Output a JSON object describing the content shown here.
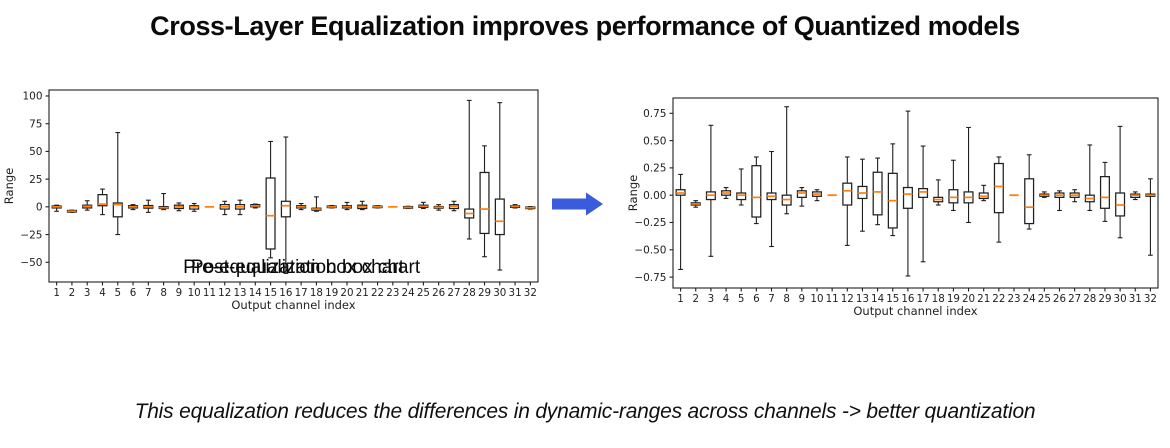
{
  "header": {
    "title": "Cross-Layer Equalization improves performance of Quantized models"
  },
  "footnote": {
    "text": "This equalization reduces the differences in dynamic-ranges across channels -> better quantization"
  },
  "arrow": {
    "name": "right-arrow",
    "color": "#3A5BDB"
  },
  "colors": {
    "box_line": "#1f1f1f",
    "median": "#ff7f0e",
    "background": "#ffffff"
  },
  "box_value_order": [
    "whisker_low",
    "q1",
    "median",
    "q3",
    "whisker_high"
  ],
  "chart_data": [
    {
      "type": "boxplot",
      "title": "Pre-equalization box chart",
      "xlabel": "Output channel index",
      "ylabel": "Range",
      "grid": false,
      "ylim": [
        -67.8,
        105.4
      ],
      "ytick_values": [
        100,
        75,
        50,
        25,
        0,
        -25,
        -50
      ],
      "ytick_labels": [
        "100",
        "75",
        "50",
        "25",
        "0",
        "−25",
        "−50"
      ],
      "categories": [
        1,
        2,
        3,
        4,
        5,
        6,
        7,
        8,
        9,
        10,
        11,
        12,
        13,
        14,
        15,
        16,
        17,
        18,
        19,
        20,
        21,
        22,
        23,
        24,
        25,
        26,
        27,
        28,
        29,
        30,
        31,
        32
      ],
      "boxes": [
        [
          -4,
          -1,
          0,
          0.8,
          1.5
        ],
        [
          -5,
          -4.5,
          -4,
          -3.5,
          -3
        ],
        [
          -3,
          -1,
          0.5,
          1.5,
          5.5
        ],
        [
          -7,
          1,
          2.5,
          11,
          16
        ],
        [
          -25,
          -9,
          2,
          3.5,
          67
        ],
        [
          -2.5,
          -1,
          0,
          1,
          2
        ],
        [
          -5,
          -1.2,
          0,
          1.2,
          6
        ],
        [
          -2.5,
          -1.5,
          -0.8,
          0.2,
          12
        ],
        [
          -3.5,
          -1.5,
          0,
          1.5,
          3.5
        ],
        [
          -4,
          -2,
          0,
          1,
          3
        ],
        [
          0,
          0,
          0,
          0,
          0
        ],
        [
          -7,
          -2,
          0,
          2,
          5
        ],
        [
          -7,
          -2,
          0,
          2,
          6
        ],
        [
          -1,
          0,
          0.8,
          2,
          2.5
        ],
        [
          -46,
          -38,
          -8,
          26,
          59
        ],
        [
          -60,
          -9,
          1,
          5,
          63
        ],
        [
          -2.5,
          -1,
          0,
          1,
          3
        ],
        [
          -4,
          -3,
          -2,
          -1.2,
          9
        ],
        [
          -1,
          -0.5,
          0,
          0.6,
          1.2
        ],
        [
          -2.5,
          -1,
          0,
          1,
          4
        ],
        [
          -2.5,
          -1.5,
          0,
          1.5,
          5
        ],
        [
          -1,
          -0.5,
          0,
          0.5,
          1
        ],
        [
          0,
          0,
          0,
          0,
          0
        ],
        [
          -1.5,
          -1,
          -0.5,
          0,
          0.5
        ],
        [
          -1.5,
          -0.5,
          0.5,
          1.5,
          4
        ],
        [
          -3,
          -1.2,
          -0.4,
          0.3,
          2
        ],
        [
          -3.5,
          -1.5,
          0.5,
          2,
          5
        ],
        [
          -29,
          -10,
          -6,
          -2,
          96
        ],
        [
          -45,
          -24,
          -2,
          31,
          55
        ],
        [
          -57,
          -25,
          -13,
          7,
          94
        ],
        [
          -1,
          -0.5,
          0.4,
          1,
          2
        ],
        [
          -2,
          -1.3,
          -0.8,
          -0.4,
          0.2
        ]
      ]
    },
    {
      "type": "boxplot",
      "title": "Post-equalization box chart",
      "xlabel": "Output channel index",
      "ylabel": "Range",
      "grid": false,
      "ylim": [
        -0.85,
        0.89
      ],
      "ytick_values": [
        0.75,
        0.5,
        0.25,
        0,
        -0.25,
        -0.5,
        -0.75
      ],
      "ytick_labels": [
        "0.75",
        "0.50",
        "0.25",
        "0.00",
        "−0.25",
        "−0.50",
        "−0.75"
      ],
      "categories": [
        1,
        2,
        3,
        4,
        5,
        6,
        7,
        8,
        9,
        10,
        11,
        12,
        13,
        14,
        15,
        16,
        17,
        18,
        19,
        20,
        21,
        22,
        23,
        24,
        25,
        26,
        27,
        28,
        29,
        30,
        31,
        32
      ],
      "boxes": [
        [
          -0.68,
          0.0,
          0.02,
          0.05,
          0.19
        ],
        [
          -0.11,
          -0.09,
          -0.08,
          -0.07,
          -0.05
        ],
        [
          -0.56,
          -0.04,
          0.0,
          0.03,
          0.64
        ],
        [
          -0.03,
          0.0,
          0.02,
          0.04,
          0.07
        ],
        [
          -0.09,
          -0.04,
          0.0,
          0.02,
          0.24
        ],
        [
          -0.26,
          -0.2,
          -0.02,
          0.27,
          0.35
        ],
        [
          -0.47,
          -0.04,
          -0.01,
          0.02,
          0.4
        ],
        [
          -0.17,
          -0.09,
          -0.04,
          0.0,
          0.81
        ],
        [
          -0.1,
          -0.02,
          0.02,
          0.04,
          0.07
        ],
        [
          -0.05,
          -0.01,
          0.01,
          0.03,
          0.05
        ],
        [
          0,
          0,
          0,
          0,
          0
        ],
        [
          -0.46,
          -0.09,
          0.04,
          0.11,
          0.35
        ],
        [
          -0.33,
          -0.03,
          0.02,
          0.08,
          0.33
        ],
        [
          -0.27,
          -0.18,
          0.03,
          0.21,
          0.34
        ],
        [
          -0.37,
          -0.3,
          -0.05,
          0.2,
          0.47
        ],
        [
          -0.74,
          -0.12,
          0.01,
          0.07,
          0.77
        ],
        [
          -0.61,
          -0.02,
          0.03,
          0.06,
          0.45
        ],
        [
          -0.09,
          -0.06,
          -0.04,
          -0.02,
          0.14
        ],
        [
          -0.14,
          -0.07,
          -0.02,
          0.05,
          0.32
        ],
        [
          -0.25,
          -0.07,
          -0.02,
          0.03,
          0.62
        ],
        [
          -0.05,
          -0.03,
          -0.01,
          0.02,
          0.09
        ],
        [
          -0.43,
          -0.16,
          0.08,
          0.29,
          0.35
        ],
        [
          0,
          0,
          0,
          0,
          0
        ],
        [
          -0.31,
          -0.26,
          -0.11,
          0.15,
          0.37
        ],
        [
          -0.02,
          -0.01,
          0.0,
          0.01,
          0.03
        ],
        [
          -0.14,
          -0.02,
          0.0,
          0.02,
          0.04
        ],
        [
          -0.06,
          -0.02,
          0.0,
          0.02,
          0.05
        ],
        [
          -0.14,
          -0.06,
          -0.03,
          0.0,
          0.46
        ],
        [
          -0.24,
          -0.12,
          -0.02,
          0.17,
          0.3
        ],
        [
          -0.39,
          -0.19,
          -0.09,
          0.02,
          0.63
        ],
        [
          -0.04,
          -0.02,
          0.0,
          0.01,
          0.03
        ],
        [
          -0.55,
          -0.01,
          0.0,
          0.01,
          0.15
        ]
      ]
    }
  ]
}
